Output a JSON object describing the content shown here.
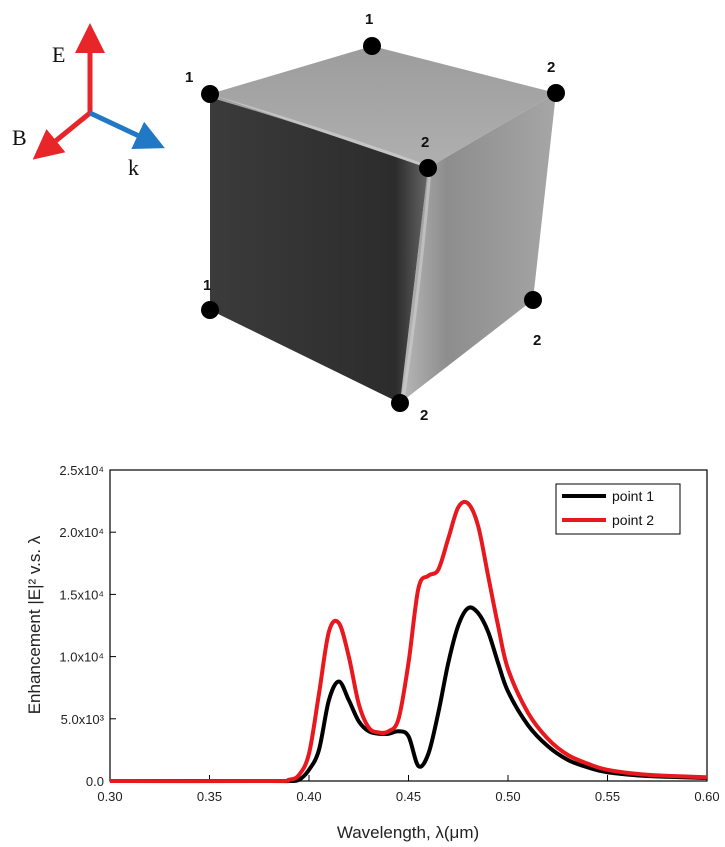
{
  "diagram": {
    "axes": {
      "e_label": "E",
      "b_label": "B",
      "k_label": "k",
      "e_color": "#e8262a",
      "b_color": "#e8262a",
      "k_color": "#2178c4"
    },
    "vertices": [
      {
        "id": "top-back",
        "label": "1"
      },
      {
        "id": "top-left",
        "label": "1"
      },
      {
        "id": "top-right",
        "label": "2"
      },
      {
        "id": "top-front",
        "label": "2"
      },
      {
        "id": "bottom-left",
        "label": "1"
      },
      {
        "id": "bottom-right",
        "label": "2"
      },
      {
        "id": "bottom-front",
        "label": "2"
      }
    ]
  },
  "chart_data": {
    "type": "line",
    "xlabel": "Wavelength, λ(μm)",
    "ylabel": "Enhancement |E|² v.s. λ",
    "xlim": [
      0.3,
      0.6
    ],
    "ylim": [
      0,
      25000
    ],
    "xticks": [
      "0.30",
      "0.35",
      "0.40",
      "0.45",
      "0.50",
      "0.55",
      "0.60"
    ],
    "yticks": [
      "0.0",
      "5.0x10³",
      "1.0x10⁴",
      "1.5x10⁴",
      "2.0x10⁴",
      "2.5x10⁴"
    ],
    "legend_position": "top-right",
    "series": [
      {
        "name": "point 1",
        "color": "#000000",
        "x": [
          0.3,
          0.38,
          0.39,
          0.395,
          0.4,
          0.405,
          0.41,
          0.415,
          0.42,
          0.425,
          0.43,
          0.435,
          0.44,
          0.445,
          0.45,
          0.455,
          0.46,
          0.465,
          0.47,
          0.475,
          0.48,
          0.485,
          0.49,
          0.495,
          0.5,
          0.51,
          0.52,
          0.53,
          0.54,
          0.55,
          0.57,
          0.6
        ],
        "y": [
          0,
          0,
          0,
          100,
          900,
          2500,
          6500,
          8000,
          6500,
          4800,
          4000,
          3800,
          3800,
          4000,
          3600,
          1200,
          2200,
          5500,
          9500,
          12500,
          13900,
          13500,
          12000,
          9500,
          7200,
          4500,
          2800,
          1700,
          1100,
          700,
          400,
          250
        ]
      },
      {
        "name": "point 2",
        "color": "#e8181e",
        "x": [
          0.3,
          0.38,
          0.39,
          0.395,
          0.4,
          0.405,
          0.41,
          0.415,
          0.42,
          0.425,
          0.43,
          0.435,
          0.44,
          0.445,
          0.45,
          0.455,
          0.46,
          0.465,
          0.47,
          0.475,
          0.48,
          0.485,
          0.49,
          0.495,
          0.5,
          0.51,
          0.52,
          0.53,
          0.54,
          0.55,
          0.57,
          0.6
        ],
        "y": [
          0,
          0,
          100,
          500,
          2200,
          7000,
          12000,
          12700,
          10000,
          6200,
          4300,
          3900,
          4000,
          5000,
          9500,
          15500,
          16500,
          17000,
          19500,
          22000,
          22300,
          20500,
          16500,
          12500,
          9000,
          5500,
          3400,
          2100,
          1400,
          900,
          500,
          300
        ]
      }
    ]
  }
}
